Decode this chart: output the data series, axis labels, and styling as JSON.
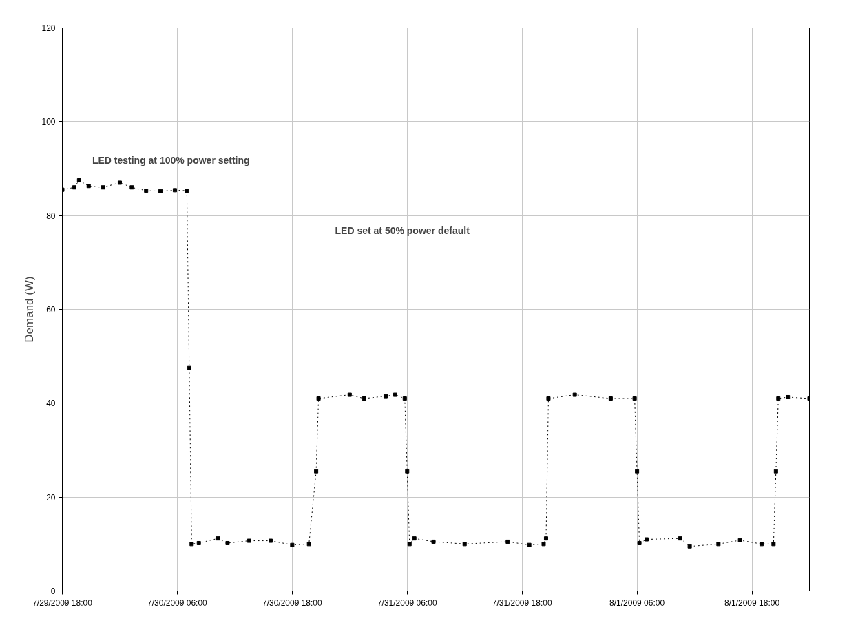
{
  "chart_data": {
    "type": "line",
    "ylabel": "Demand (W)",
    "x": [
      "2009-07-29T18:00",
      "2009-07-29T19:15",
      "2009-07-29T19:45",
      "2009-07-29T20:45",
      "2009-07-29T22:15",
      "2009-07-30T00:00",
      "2009-07-30T01:15",
      "2009-07-30T02:45",
      "2009-07-30T04:15",
      "2009-07-30T05:45",
      "2009-07-30T07:00",
      "2009-07-30T07:15",
      "2009-07-30T07:30",
      "2009-07-30T08:15",
      "2009-07-30T10:15",
      "2009-07-30T11:15",
      "2009-07-30T13:30",
      "2009-07-30T15:45",
      "2009-07-30T18:00",
      "2009-07-30T19:45",
      "2009-07-30T20:30",
      "2009-07-30T20:45",
      "2009-07-31T00:00",
      "2009-07-31T01:30",
      "2009-07-31T03:45",
      "2009-07-31T04:45",
      "2009-07-31T05:45",
      "2009-07-31T06:00",
      "2009-07-31T06:15",
      "2009-07-31T06:45",
      "2009-07-31T08:45",
      "2009-07-31T12:00",
      "2009-07-31T16:30",
      "2009-07-31T18:45",
      "2009-07-31T20:15",
      "2009-07-31T20:30",
      "2009-07-31T20:45",
      "2009-07-31T23:30",
      "2009-08-01T03:15",
      "2009-08-01T05:45",
      "2009-08-01T06:00",
      "2009-08-01T06:15",
      "2009-08-01T07:00",
      "2009-08-01T10:30",
      "2009-08-01T11:30",
      "2009-08-01T14:30",
      "2009-08-01T16:45",
      "2009-08-01T19:00",
      "2009-08-01T20:15",
      "2009-08-01T20:30",
      "2009-08-01T20:45",
      "2009-08-01T21:45",
      "2009-08-02T00:00"
    ],
    "series": [
      {
        "color": "#000000",
        "values": [
          85.5,
          86,
          87.5,
          86.3,
          86,
          87,
          86,
          85.3,
          85.2,
          85.4,
          85.3,
          47.5,
          10,
          10.2,
          11.2,
          10.2,
          10.7,
          10.7,
          9.8,
          10,
          25.5,
          41,
          41.8,
          41,
          41.5,
          41.8,
          41,
          25.5,
          10,
          11.2,
          10.5,
          10,
          10.5,
          9.8,
          10,
          11.2,
          41,
          41.8,
          41,
          41,
          25.5,
          10.2,
          11,
          11.2,
          9.5,
          10,
          10.8,
          10,
          10,
          25.5,
          41,
          41.3,
          41
        ]
      }
    ],
    "xlim": [
      "2009-07-29T18:00",
      "2009-08-02T00:00"
    ],
    "xticks": [
      {
        "value": "2009-07-29T18:00",
        "label": "7/29/2009 18:00"
      },
      {
        "value": "2009-07-30T06:00",
        "label": "7/30/2009 06:00"
      },
      {
        "value": "2009-07-30T18:00",
        "label": "7/30/2009 18:00"
      },
      {
        "value": "2009-07-31T06:00",
        "label": "7/31/2009 06:00"
      },
      {
        "value": "2009-07-31T18:00",
        "label": "7/31/2009 18:00"
      },
      {
        "value": "2009-08-01T06:00",
        "label": "8/1/2009 06:00"
      },
      {
        "value": "2009-08-01T18:00",
        "label": "8/1/2009 18:00"
      }
    ],
    "ylim": [
      0,
      120
    ],
    "yticks": [
      0,
      20,
      40,
      60,
      80,
      100,
      120
    ],
    "grid": true,
    "marker": "square",
    "line_style": "dotted",
    "annotations": [
      "LED testing at 100% power setting",
      "LED set at 50% power default"
    ]
  }
}
